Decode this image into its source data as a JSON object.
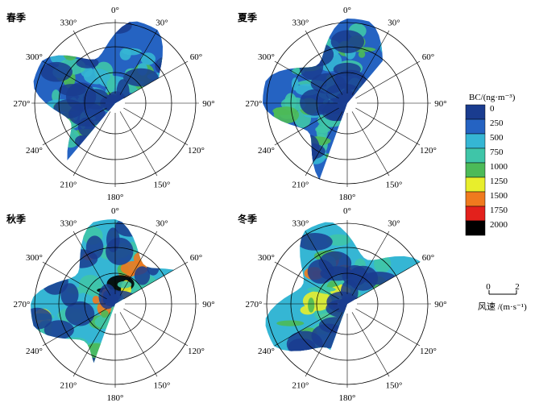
{
  "chart_data": [
    {
      "type": "polar-contour",
      "title": "春季",
      "angle_ticks": [
        "0°",
        "30°",
        "60°",
        "90°",
        "120°",
        "150°",
        "180°",
        "210°",
        "240°",
        "270°",
        "300°",
        "330°"
      ],
      "note": "Bivariate polar plot of BC concentration by wind direction and wind speed"
    },
    {
      "type": "polar-contour",
      "title": "夏季",
      "angle_ticks": [
        "0°",
        "30°",
        "60°",
        "90°",
        "120°",
        "150°",
        "180°",
        "210°",
        "240°",
        "270°",
        "300°",
        "330°"
      ]
    },
    {
      "type": "polar-contour",
      "title": "秋季",
      "angle_ticks": [
        "0°",
        "30°",
        "60°",
        "90°",
        "120°",
        "150°",
        "180°",
        "210°",
        "240°",
        "270°",
        "300°",
        "330°"
      ]
    },
    {
      "type": "polar-contour",
      "title": "冬季",
      "angle_ticks": [
        "0°",
        "30°",
        "60°",
        "90°",
        "120°",
        "150°",
        "180°",
        "210°",
        "240°",
        "270°",
        "300°",
        "330°"
      ]
    }
  ],
  "legend": {
    "title": "BC/(ng·m⁻³)",
    "levels": [
      "0",
      "250",
      "500",
      "750",
      "1000",
      "1250",
      "1500",
      "1750",
      "2000"
    ],
    "colors": [
      "#1a3c8f",
      "#2563c2",
      "#35b6d4",
      "#3fc5a8",
      "#4cba58",
      "#e8ee2c",
      "#f07a1e",
      "#e3211c",
      "#000000"
    ]
  },
  "speed_scale": {
    "min": "0",
    "max": "2",
    "label": "风速 /(m·s⁻¹)"
  }
}
